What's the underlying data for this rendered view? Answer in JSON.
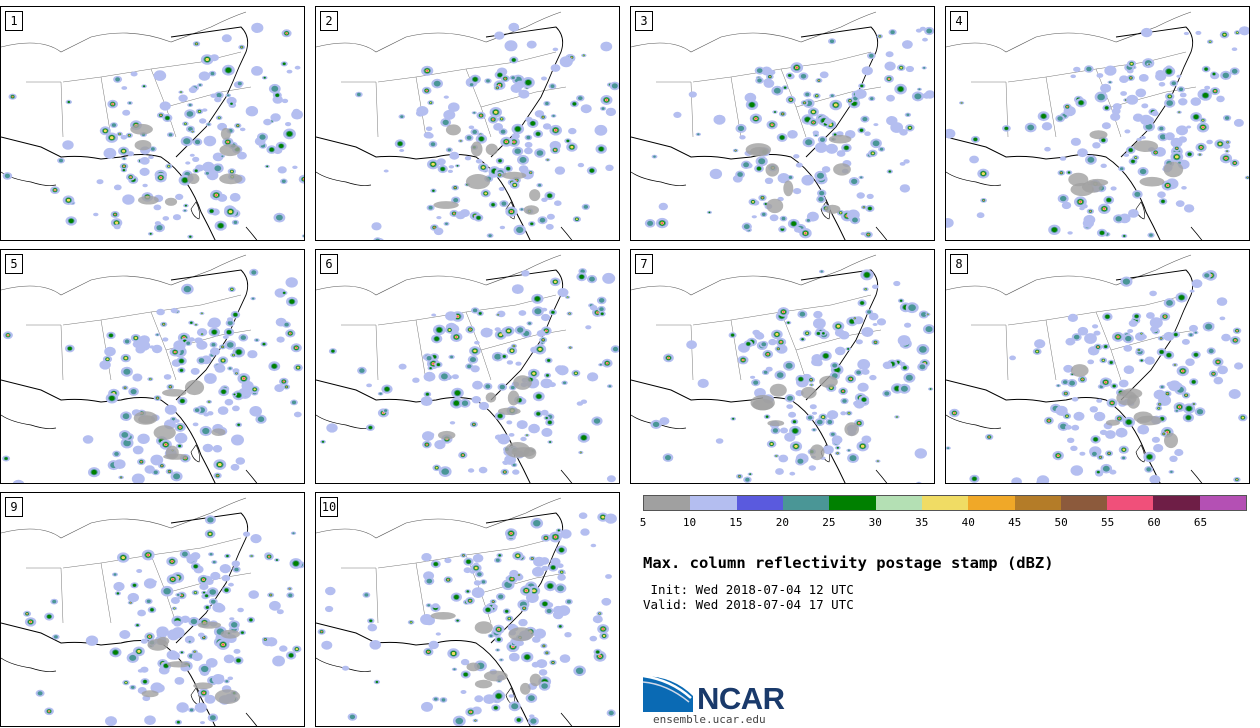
{
  "panels": [
    {
      "label": "1"
    },
    {
      "label": "2"
    },
    {
      "label": "3"
    },
    {
      "label": "4"
    },
    {
      "label": "5"
    },
    {
      "label": "6"
    },
    {
      "label": "7"
    },
    {
      "label": "8"
    },
    {
      "label": "9"
    },
    {
      "label": "10"
    }
  ],
  "colorbar": {
    "ticks": [
      "5",
      "10",
      "15",
      "20",
      "25",
      "30",
      "35",
      "40",
      "45",
      "50",
      "55",
      "60",
      "65"
    ],
    "colors": [
      "#a0a0a0",
      "#b4bef0",
      "#5a5ade",
      "#4a9696",
      "#008000",
      "#b4e0b4",
      "#f0dc64",
      "#f0a828",
      "#b47c28",
      "#8c5a3c",
      "#f0507a",
      "#6e1e46",
      "#b450b4"
    ]
  },
  "title": "Max. column reflectivity postage stamp (dBZ)",
  "init": " Init: Wed 2018-07-04 12 UTC",
  "valid": "Valid: Wed 2018-07-04 17 UTC",
  "logo": {
    "text": "NCAR",
    "site": "ensemble.ucar.edu"
  }
}
